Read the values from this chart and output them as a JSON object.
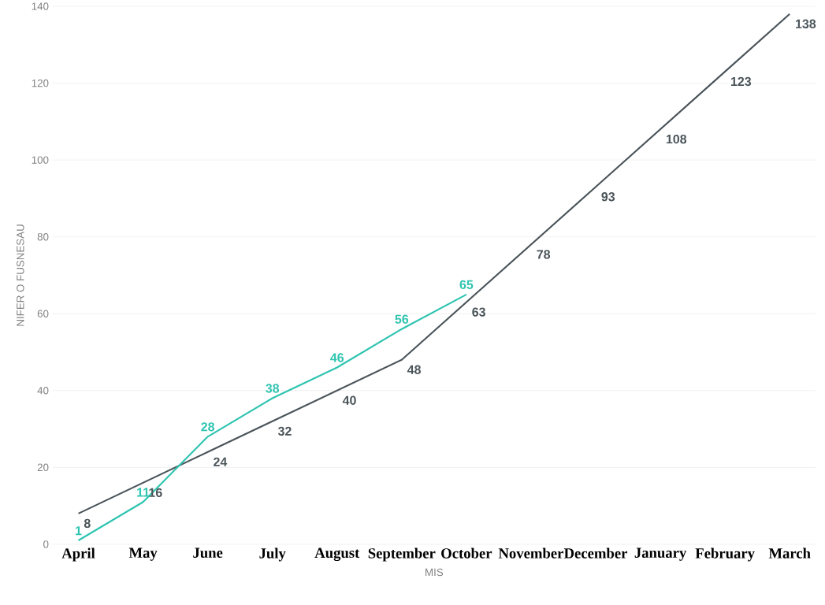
{
  "chart_data": {
    "type": "line",
    "xlabel": "MIS",
    "ylabel": "NIFER O FUSNESAU",
    "categories": [
      "April",
      "May",
      "June",
      "July",
      "August",
      "September",
      "October",
      "November",
      "December",
      "January",
      "February",
      "March"
    ],
    "series": [
      {
        "color": "#4a5459",
        "values": [
          8,
          16,
          24,
          32,
          40,
          48,
          63,
          78,
          93,
          108,
          123,
          138
        ]
      },
      {
        "color": "#2ec4b0",
        "values": [
          1,
          11,
          28,
          38,
          46,
          56,
          65,
          null,
          null,
          null,
          null,
          null
        ]
      }
    ],
    "ylim": [
      0,
      140
    ],
    "yticks": [
      0,
      20,
      40,
      60,
      80,
      100,
      120,
      140
    ],
    "grid": "y",
    "data_labels": true,
    "marker": "none",
    "line_style": "solid"
  }
}
